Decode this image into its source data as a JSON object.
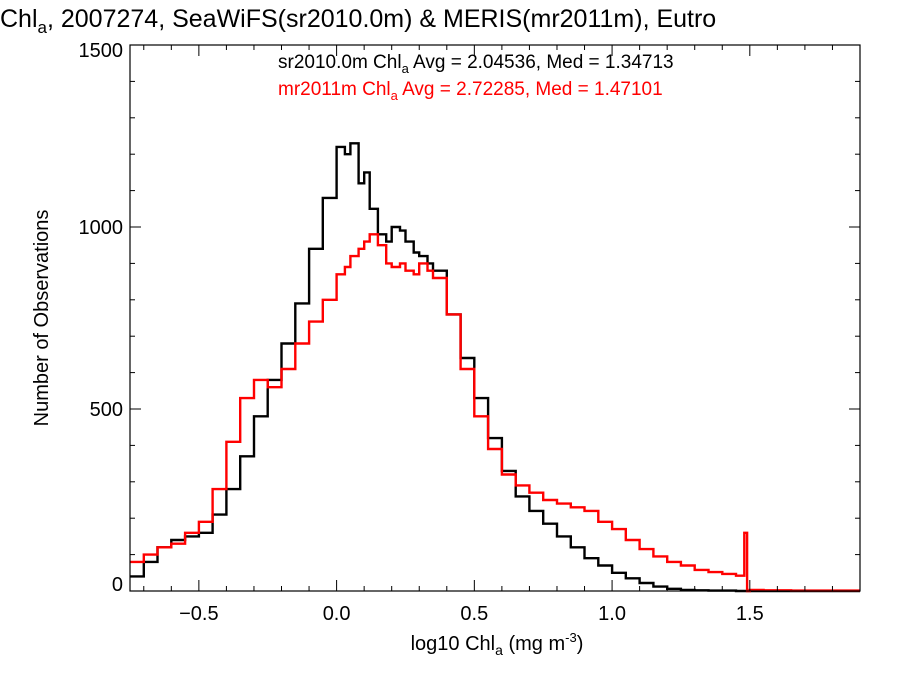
{
  "chart_data": {
    "type": "line",
    "step": true,
    "title": {
      "prefix": "Chl",
      "sub": "a",
      "suffix": ", 2007274, SeaWiFS(sr2010.0m) & MERIS(mr2011m), Eutro"
    },
    "xlabel": {
      "prefix": "log10 Chl",
      "sub": "a",
      "mid": " (mg m",
      "sup": "-3",
      "suffix": ")"
    },
    "ylabel": "Number of Observations",
    "xlim": [
      -0.75,
      1.9
    ],
    "ylim": [
      0,
      1500
    ],
    "xticks": [
      -0.5,
      0.0,
      0.5,
      1.0,
      1.5
    ],
    "xtick_labels": [
      "−0.5",
      "0.0",
      "0.5",
      "1.0",
      "1.5"
    ],
    "yticks": [
      0,
      500,
      1000,
      1500
    ],
    "ytick_labels": [
      "0",
      "500",
      "1000",
      "1500"
    ],
    "legend_position": "top-right",
    "series": [
      {
        "name": "sr2010.0m",
        "color": "#000000",
        "stats_label": {
          "prefix": "sr2010.0m Chl",
          "sub": "a",
          "suffix": " Avg = 2.04536, Med = 1.34713"
        },
        "x": [
          -0.75,
          -0.7,
          -0.65,
          -0.6,
          -0.55,
          -0.5,
          -0.45,
          -0.4,
          -0.35,
          -0.3,
          -0.25,
          -0.2,
          -0.15,
          -0.1,
          -0.05,
          0.0,
          0.03,
          0.05,
          0.08,
          0.1,
          0.12,
          0.15,
          0.18,
          0.2,
          0.23,
          0.25,
          0.28,
          0.3,
          0.33,
          0.35,
          0.4,
          0.45,
          0.5,
          0.55,
          0.6,
          0.65,
          0.7,
          0.75,
          0.8,
          0.85,
          0.9,
          0.95,
          1.0,
          1.05,
          1.1,
          1.15,
          1.2,
          1.25,
          1.3,
          1.35,
          1.4,
          1.45,
          1.5,
          1.55,
          1.6,
          1.65,
          1.7,
          1.75,
          1.8,
          1.85,
          1.9
        ],
        "y": [
          40,
          80,
          120,
          140,
          150,
          160,
          210,
          280,
          370,
          480,
          580,
          680,
          790,
          940,
          1080,
          1220,
          1200,
          1230,
          1120,
          1150,
          1050,
          980,
          960,
          1000,
          990,
          960,
          930,
          920,
          900,
          880,
          760,
          640,
          530,
          420,
          330,
          260,
          220,
          185,
          150,
          120,
          90,
          70,
          50,
          35,
          22,
          12,
          6,
          3,
          2,
          1,
          1,
          0,
          0,
          0,
          0,
          0,
          0,
          0,
          0,
          0,
          0
        ]
      },
      {
        "name": "mr2011m",
        "color": "#ff0000",
        "stats_label": {
          "prefix": "mr2011m Chl",
          "sub": "a",
          "suffix": " Avg = 2.72285, Med = 1.47101"
        },
        "x": [
          -0.75,
          -0.7,
          -0.65,
          -0.6,
          -0.55,
          -0.5,
          -0.45,
          -0.4,
          -0.35,
          -0.3,
          -0.25,
          -0.2,
          -0.15,
          -0.1,
          -0.05,
          0.0,
          0.03,
          0.05,
          0.08,
          0.1,
          0.12,
          0.15,
          0.18,
          0.2,
          0.23,
          0.25,
          0.28,
          0.3,
          0.33,
          0.35,
          0.4,
          0.45,
          0.5,
          0.55,
          0.6,
          0.65,
          0.7,
          0.75,
          0.8,
          0.85,
          0.9,
          0.95,
          1.0,
          1.05,
          1.1,
          1.15,
          1.2,
          1.25,
          1.3,
          1.35,
          1.4,
          1.45,
          1.48,
          1.49,
          1.5,
          1.55,
          1.6,
          1.65,
          1.7,
          1.75,
          1.8,
          1.85,
          1.9
        ],
        "y": [
          80,
          100,
          120,
          130,
          160,
          190,
          280,
          410,
          530,
          580,
          560,
          610,
          680,
          740,
          800,
          870,
          890,
          920,
          940,
          960,
          980,
          950,
          900,
          890,
          900,
          880,
          870,
          900,
          880,
          860,
          760,
          610,
          480,
          390,
          320,
          290,
          270,
          250,
          240,
          230,
          220,
          190,
          170,
          140,
          115,
          95,
          80,
          70,
          58,
          52,
          47,
          42,
          160,
          0,
          3,
          2,
          2,
          1,
          1,
          1,
          1,
          1,
          1
        ]
      }
    ]
  }
}
